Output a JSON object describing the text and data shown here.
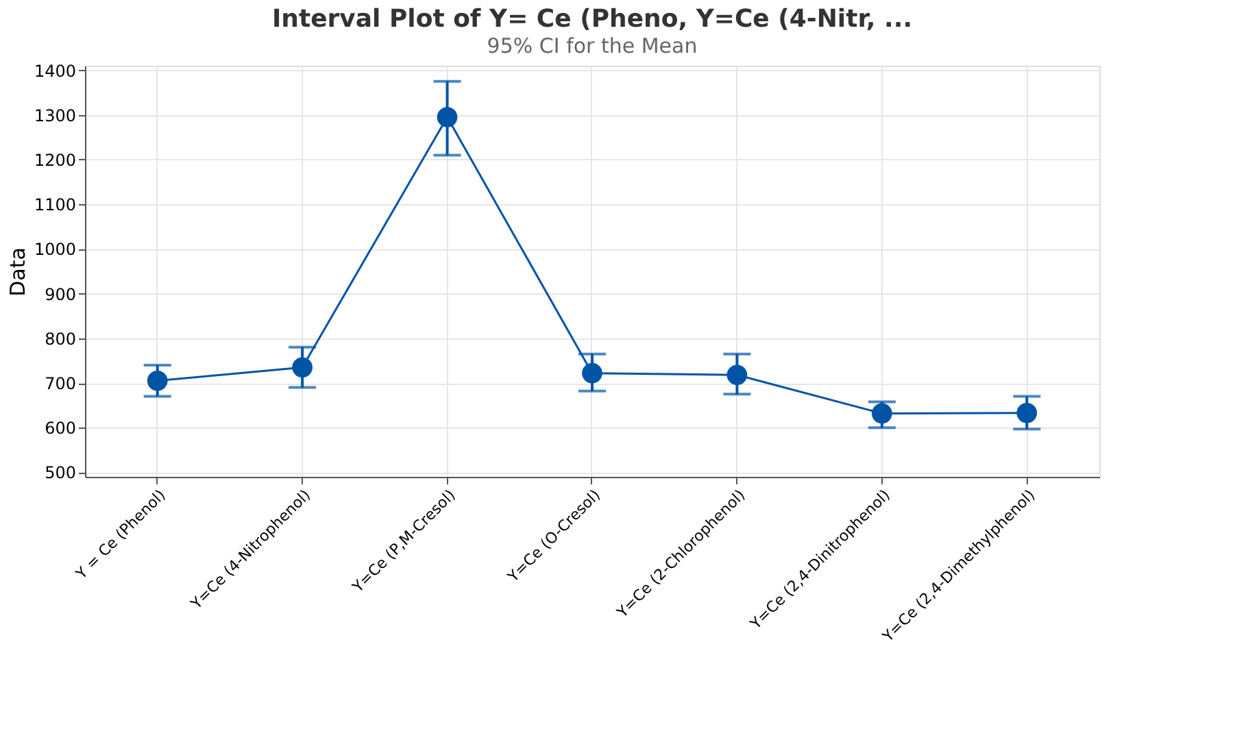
{
  "chart_data": {
    "type": "line",
    "title": "Interval Plot of Y= Ce (Pheno, Y=Ce (4-Nitr, ...",
    "subtitle": "95% CI for the Mean",
    "ylabel": "Data",
    "categories": [
      "Y = Ce (Phenol)",
      "Y=Ce (4-Nitrophenol)",
      "Y=Ce (P,M-Cresol)",
      "Y=Ce (O-Cresol)",
      "Y=Ce (2-Chlorophenol)",
      "Y=Ce (2,4-Dinitrophenol)",
      "Y=Ce (2,4-Dimethylphenol)"
    ],
    "series": [
      {
        "color": "#0054a6",
        "values": [
          705,
          735,
          1295,
          722,
          718,
          632,
          633
        ],
        "errors": [
          [
            670,
            740
          ],
          [
            690,
            780
          ],
          [
            1210,
            1375
          ],
          [
            682,
            765
          ],
          [
            675,
            765
          ],
          [
            600,
            658
          ],
          [
            597,
            670
          ]
        ]
      }
    ],
    "ylim": [
      490,
      1410
    ],
    "yticks": [
      500,
      600,
      700,
      800,
      900,
      1000,
      1100,
      1200,
      1300,
      1400
    ],
    "grid": true,
    "marker": "circle",
    "line_style": "solid"
  }
}
